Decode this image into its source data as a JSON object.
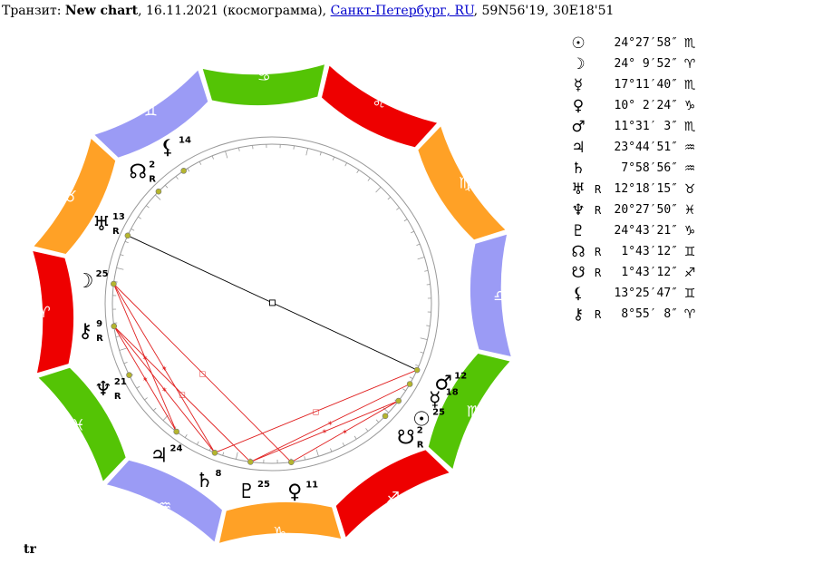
{
  "header": {
    "prefix": "Транзит: ",
    "chart_name": "New chart",
    "details": ", 16.11.2021 (космограмма), ",
    "location_link": "Санкт-Петербург, RU",
    "coords": ", 59N56'19, 30E18'51"
  },
  "footer": {
    "label": "tr"
  },
  "signs": [
    {
      "name": "aries",
      "glyph": "♈",
      "color": "#ee0000"
    },
    {
      "name": "taurus",
      "glyph": "♉",
      "color": "#ffa126"
    },
    {
      "name": "gemini",
      "glyph": "♊",
      "color": "#9b9bf5"
    },
    {
      "name": "cancer",
      "glyph": "♋",
      "color": "#54c405"
    },
    {
      "name": "leo",
      "glyph": "♌",
      "color": "#ee0000"
    },
    {
      "name": "virgo",
      "glyph": "♍",
      "color": "#ffa126"
    },
    {
      "name": "libra",
      "glyph": "♎",
      "color": "#9b9bf5"
    },
    {
      "name": "scorpio",
      "glyph": "♏",
      "color": "#54c405"
    },
    {
      "name": "sagittarius",
      "glyph": "♐",
      "color": "#ee0000"
    },
    {
      "name": "capricorn",
      "glyph": "♑",
      "color": "#ffa126"
    },
    {
      "name": "aquarius",
      "glyph": "♒",
      "color": "#9b9bf5"
    },
    {
      "name": "pisces",
      "glyph": "♓",
      "color": "#54c405"
    }
  ],
  "planets": [
    {
      "name": "sun",
      "glyph": "☉",
      "lon": 234.47,
      "label": "25",
      "retro": "",
      "pos": "24°27′58″",
      "sign": "♏"
    },
    {
      "name": "moon",
      "glyph": "☽",
      "lon": 24.16,
      "label": "25",
      "retro": "",
      "pos": "24° 9′52″",
      "sign": "♈"
    },
    {
      "name": "mercury",
      "glyph": "☿",
      "lon": 227.19,
      "label": "18",
      "retro": "",
      "pos": "17°11′40″",
      "sign": "♏"
    },
    {
      "name": "venus",
      "glyph": "♀",
      "lon": 280.04,
      "label": "11",
      "retro": "",
      "pos": "10° 2′24″",
      "sign": "♑"
    },
    {
      "name": "mars",
      "glyph": "♂",
      "lon": 221.52,
      "label": "12",
      "retro": "",
      "pos": "11°31′ 3″",
      "sign": "♏"
    },
    {
      "name": "jupiter",
      "glyph": "♃",
      "lon": 323.75,
      "label": "24",
      "retro": "",
      "pos": "23°44′51″",
      "sign": "♒"
    },
    {
      "name": "saturn",
      "glyph": "♄",
      "lon": 307.98,
      "label": "8",
      "retro": "",
      "pos": " 7°58′56″",
      "sign": "♒"
    },
    {
      "name": "uranus",
      "glyph": "♅",
      "lon": 42.3,
      "label": "13",
      "retro": "R",
      "pos": "12°18′15″",
      "sign": "♉"
    },
    {
      "name": "neptune",
      "glyph": "♆",
      "lon": 350.46,
      "label": "21",
      "retro": "R",
      "pos": "20°27′50″",
      "sign": "♓"
    },
    {
      "name": "pluto",
      "glyph": "♇",
      "lon": 294.72,
      "label": "25",
      "retro": "",
      "pos": "24°43′21″",
      "sign": "♑"
    },
    {
      "name": "north-node",
      "glyph": "☊",
      "lon": 61.72,
      "label": "2",
      "retro": "R",
      "pos": " 1°43′12″",
      "sign": "♊"
    },
    {
      "name": "south-node",
      "glyph": "☋",
      "lon": 241.72,
      "label": "2",
      "retro": "R",
      "pos": " 1°43′12″",
      "sign": "♐"
    },
    {
      "name": "lilith",
      "glyph": "⚸",
      "lon": 73.43,
      "label": "14",
      "retro": "",
      "pos": "13°25′47″",
      "sign": "♊"
    },
    {
      "name": "chiron",
      "glyph": "⚷",
      "lon": 8.92,
      "label": "9",
      "retro": "R",
      "pos": " 8°55′ 8″",
      "sign": "♈"
    }
  ],
  "aspects": [
    {
      "a": "sun",
      "b": "venus",
      "kind": "sextile"
    },
    {
      "a": "saturn",
      "b": "mars",
      "kind": "square"
    },
    {
      "a": "uranus",
      "b": "mars",
      "kind": "opposition"
    },
    {
      "a": "venus",
      "b": "moon",
      "kind": "square"
    },
    {
      "a": "pluto",
      "b": "chiron",
      "kind": "square"
    },
    {
      "a": "jupiter",
      "b": "moon",
      "kind": "sextile"
    },
    {
      "a": "saturn",
      "b": "chiron",
      "kind": "sextile"
    },
    {
      "a": "pluto",
      "b": "sun",
      "kind": "sextile"
    },
    {
      "a": "pluto",
      "b": "mercury",
      "kind": "sextile"
    },
    {
      "a": "jupiter",
      "b": "chiron",
      "kind": "sextile"
    },
    {
      "a": "saturn",
      "b": "moon",
      "kind": "sextile"
    }
  ],
  "aspect_colors": {
    "red": "#e02020",
    "black": "#000000"
  }
}
